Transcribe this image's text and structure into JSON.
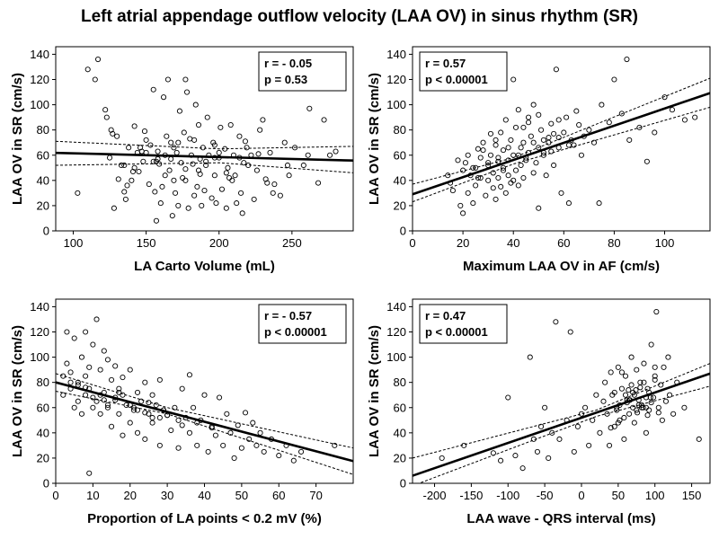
{
  "figure_title": "Left atrial appendage outflow velocity (LAA OV) in sinus rhythm (SR)",
  "chart_data": [
    {
      "type": "scatter",
      "ylabel": "LAA OV in SR (cm/s)",
      "xlabel": "LA Carto Volume (mL)",
      "xlim": [
        88,
        292
      ],
      "ylim": [
        0,
        146
      ],
      "xticks": [
        100,
        150,
        200,
        250
      ],
      "yticks": [
        0,
        20,
        40,
        60,
        80,
        100,
        120,
        140
      ],
      "grid": false,
      "stats": [
        "r = - 0.05",
        "p = 0.53"
      ],
      "stats_position": "top-right",
      "regression": {
        "intercept": 64.5,
        "slope": -0.03
      },
      "ci_band": {
        "lower": [
          [
            88,
            52
          ],
          [
            200,
            54
          ],
          [
            292,
            46
          ]
        ],
        "upper": [
          [
            88,
            71
          ],
          [
            200,
            65
          ],
          [
            292,
            67
          ]
        ]
      },
      "x": [
        103,
        110,
        115,
        117,
        122,
        123,
        125,
        126,
        128,
        131,
        133,
        135,
        136,
        138,
        140,
        142,
        142,
        145,
        146,
        148,
        150,
        150,
        152,
        153,
        155,
        156,
        157,
        158,
        159,
        160,
        161,
        162,
        163,
        164,
        165,
        166,
        167,
        168,
        169,
        170,
        171,
        172,
        173,
        174,
        175,
        176,
        177,
        178,
        179,
        180,
        181,
        182,
        183,
        184,
        185,
        186,
        187,
        188,
        189,
        190,
        191,
        192,
        193,
        195,
        196,
        197,
        198,
        200,
        201,
        202,
        204,
        205,
        206,
        208,
        209,
        210,
        212,
        214,
        215,
        216,
        218,
        220,
        222,
        224,
        226,
        230,
        232,
        235,
        238,
        242,
        245,
        248,
        252,
        258,
        262,
        268,
        272,
        276,
        280,
        130,
        144,
        158,
        172,
        186,
        200,
        214,
        228,
        141,
        155,
        169,
        183,
        197,
        211,
        135,
        149,
        163,
        177,
        191,
        205,
        219,
        233,
        247,
        261,
        127,
        137,
        147,
        157,
        167,
        177,
        187,
        197,
        207,
        217,
        227,
        237
      ],
      "y": [
        30,
        128,
        120,
        136,
        96,
        90,
        58,
        80,
        18,
        41,
        52,
        31,
        25,
        66,
        40,
        50,
        83,
        47,
        66,
        55,
        72,
        62,
        37,
        68,
        112,
        31,
        8,
        63,
        53,
        22,
        35,
        106,
        44,
        75,
        120,
        48,
        57,
        12,
        40,
        30,
        62,
        20,
        95,
        54,
        42,
        78,
        120,
        110,
        18,
        73,
        60,
        53,
        28,
        100,
        35,
        84,
        45,
        20,
        66,
        32,
        52,
        90,
        60,
        26,
        70,
        44,
        22,
        58,
        82,
        33,
        65,
        18,
        50,
        84,
        40,
        60,
        22,
        75,
        30,
        14,
        71,
        52,
        60,
        25,
        48,
        88,
        41,
        62,
        37,
        28,
        70,
        44,
        66,
        52,
        97,
        38,
        88,
        60,
        63,
        75,
        62,
        57,
        70,
        48,
        62,
        58,
        80,
        47,
        55,
        66,
        72,
        58,
        44,
        52,
        79,
        60,
        40,
        55,
        46,
        66,
        38,
        52,
        60,
        77,
        36,
        63,
        55,
        70,
        49,
        57,
        68,
        42,
        54,
        61,
        30
      ]
    },
    {
      "type": "scatter",
      "ylabel": "LAA OV in SR (cm/s)",
      "xlabel": "Maximum LAA OV in AF (cm/s)",
      "xlim": [
        0,
        118
      ],
      "ylim": [
        0,
        146
      ],
      "xticks": [
        0,
        20,
        40,
        60,
        80,
        100
      ],
      "yticks": [
        0,
        20,
        40,
        60,
        80,
        100,
        120,
        140
      ],
      "grid": false,
      "stats": [
        "r = 0.57",
        "p < 0.00001"
      ],
      "stats_position": "top-left",
      "regression": {
        "intercept": 29,
        "slope": 0.68
      },
      "ci_band": {
        "lower": [
          [
            0,
            23
          ],
          [
            40,
            53
          ],
          [
            118,
            98
          ]
        ],
        "upper": [
          [
            0,
            37
          ],
          [
            40,
            58
          ],
          [
            118,
            121
          ]
        ]
      },
      "x": [
        14,
        15,
        16,
        18,
        19,
        20,
        20,
        21,
        22,
        22,
        23,
        24,
        25,
        25,
        26,
        27,
        27,
        28,
        29,
        30,
        30,
        31,
        31,
        32,
        32,
        33,
        33,
        34,
        34,
        35,
        35,
        36,
        36,
        37,
        37,
        38,
        38,
        39,
        39,
        40,
        40,
        41,
        41,
        42,
        42,
        43,
        43,
        44,
        44,
        45,
        46,
        46,
        47,
        48,
        48,
        49,
        50,
        50,
        51,
        52,
        52,
        53,
        54,
        55,
        55,
        56,
        57,
        58,
        58,
        59,
        60,
        61,
        62,
        63,
        64,
        65,
        66,
        67,
        68,
        70,
        72,
        74,
        75,
        78,
        80,
        83,
        85,
        86,
        90,
        93,
        96,
        100,
        103,
        108,
        112,
        28,
        34,
        38,
        44,
        48,
        52,
        56,
        62,
        30,
        36,
        42,
        46,
        54,
        26,
        40,
        58,
        33,
        45,
        50,
        24
      ],
      "y": [
        44,
        38,
        32,
        56,
        20,
        48,
        14,
        54,
        30,
        60,
        44,
        22,
        50,
        36,
        65,
        42,
        58,
        70,
        28,
        52,
        40,
        77,
        60,
        34,
        46,
        68,
        25,
        55,
        42,
        78,
        35,
        64,
        50,
        30,
        88,
        56,
        44,
        72,
        38,
        120,
        60,
        48,
        82,
        36,
        96,
        52,
        66,
        70,
        42,
        58,
        62,
        90,
        75,
        46,
        100,
        54,
        66,
        18,
        80,
        60,
        72,
        44,
        70,
        63,
        85,
        52,
        128,
        66,
        74,
        30,
        78,
        90,
        22,
        72,
        68,
        95,
        84,
        60,
        75,
        80,
        70,
        22,
        100,
        86,
        120,
        93,
        136,
        72,
        82,
        55,
        78,
        106,
        96,
        88,
        90,
        64,
        58,
        66,
        82,
        70,
        62,
        77,
        68,
        54,
        48,
        60,
        86,
        74,
        42,
        40,
        88,
        72,
        56,
        92,
        50
      ]
    },
    {
      "type": "scatter",
      "ylabel": "LAA OV in SR (cm/s)",
      "xlabel": "Proportion of LA points < 0.2 mV (%)",
      "xlim": [
        0,
        80
      ],
      "ylim": [
        0,
        146
      ],
      "xticks": [
        0,
        10,
        20,
        30,
        40,
        50,
        60,
        70
      ],
      "yticks": [
        0,
        20,
        40,
        60,
        80,
        100,
        120,
        140
      ],
      "grid": false,
      "stats": [
        "r = - 0.57",
        "p < 0.00001"
      ],
      "stats_position": "top-right",
      "regression": {
        "intercept": 80,
        "slope": -0.78
      },
      "ci_band": {
        "lower": [
          [
            0,
            73
          ],
          [
            30,
            55
          ],
          [
            80,
            7
          ]
        ],
        "upper": [
          [
            0,
            87
          ],
          [
            30,
            60
          ],
          [
            80,
            28
          ]
        ]
      },
      "x": [
        2,
        2,
        3,
        3,
        4,
        4,
        5,
        5,
        6,
        6,
        7,
        7,
        8,
        8,
        8,
        9,
        9,
        10,
        10,
        11,
        11,
        12,
        12,
        13,
        13,
        14,
        14,
        15,
        15,
        16,
        16,
        17,
        17,
        18,
        18,
        19,
        20,
        20,
        21,
        22,
        22,
        23,
        24,
        24,
        25,
        26,
        26,
        27,
        28,
        28,
        29,
        30,
        31,
        32,
        33,
        34,
        35,
        36,
        36,
        37,
        38,
        39,
        40,
        41,
        42,
        43,
        44,
        45,
        46,
        47,
        48,
        49,
        50,
        51,
        52,
        53,
        54,
        55,
        56,
        58,
        60,
        62,
        64,
        66,
        75,
        6,
        10,
        14,
        18,
        22,
        26,
        30,
        34,
        38,
        42,
        9,
        13,
        17,
        21,
        25,
        29,
        33,
        4,
        8,
        12,
        16,
        20,
        24,
        28
      ],
      "y": [
        85,
        70,
        120,
        95,
        75,
        88,
        60,
        115,
        65,
        80,
        55,
        100,
        120,
        70,
        85,
        8,
        75,
        60,
        110,
        65,
        130,
        55,
        90,
        105,
        72,
        60,
        98,
        82,
        45,
        68,
        93,
        55,
        75,
        38,
        84,
        62,
        48,
        90,
        58,
        72,
        40,
        65,
        80,
        35,
        55,
        70,
        48,
        62,
        82,
        30,
        58,
        54,
        42,
        60,
        28,
        75,
        52,
        86,
        40,
        60,
        30,
        50,
        70,
        25,
        45,
        38,
        68,
        30,
        55,
        40,
        20,
        46,
        28,
        56,
        35,
        48,
        30,
        40,
        25,
        35,
        22,
        30,
        18,
        25,
        30,
        78,
        68,
        62,
        70,
        58,
        52,
        54,
        46,
        48,
        44,
        92,
        66,
        72,
        60,
        64,
        58,
        50,
        80,
        76,
        70,
        66,
        62,
        56,
        52
      ]
    },
    {
      "type": "scatter",
      "ylabel": "LAA OV in SR (cm/s)",
      "xlabel": "LAA wave - QRS interval (ms)",
      "xlim": [
        -230,
        175
      ],
      "ylim": [
        0,
        146
      ],
      "xticks": [
        -200,
        -150,
        -100,
        -50,
        0,
        50,
        100,
        150
      ],
      "yticks": [
        0,
        20,
        40,
        60,
        80,
        100,
        120,
        140
      ],
      "grid": false,
      "stats": [
        "r = 0.47",
        "p < 0.00001"
      ],
      "stats_position": "top-left",
      "regression": {
        "intercept": 52,
        "slope": 0.2
      },
      "ci_band": {
        "lower": [
          [
            -230,
            -2
          ],
          [
            20,
            53
          ],
          [
            175,
            77
          ]
        ],
        "upper": [
          [
            -230,
            20
          ],
          [
            20,
            58
          ],
          [
            175,
            95
          ]
        ]
      },
      "x": [
        -190,
        -160,
        -120,
        -110,
        -100,
        -90,
        -80,
        -70,
        -65,
        -60,
        -55,
        -50,
        -45,
        -40,
        -35,
        -30,
        -20,
        -15,
        -10,
        -5,
        0,
        5,
        10,
        15,
        20,
        25,
        30,
        32,
        35,
        38,
        40,
        42,
        45,
        48,
        50,
        52,
        55,
        58,
        60,
        62,
        65,
        68,
        70,
        72,
        75,
        78,
        80,
        82,
        85,
        88,
        90,
        92,
        95,
        98,
        100,
        102,
        105,
        108,
        110,
        112,
        115,
        118,
        120,
        125,
        130,
        140,
        160,
        45,
        55,
        65,
        75,
        85,
        95,
        50,
        60,
        70,
        80,
        90,
        100,
        40,
        52,
        64,
        76,
        88,
        100,
        58,
        68,
        78,
        88,
        48,
        62,
        72,
        82,
        92,
        105,
        66,
        74,
        84,
        94
      ],
      "y": [
        20,
        30,
        24,
        18,
        68,
        22,
        12,
        100,
        35,
        25,
        45,
        60,
        20,
        40,
        128,
        35,
        50,
        120,
        25,
        45,
        55,
        60,
        30,
        50,
        70,
        40,
        65,
        80,
        55,
        30,
        88,
        70,
        45,
        60,
        92,
        50,
        75,
        35,
        85,
        66,
        55,
        100,
        72,
        48,
        90,
        62,
        80,
        60,
        95,
        40,
        75,
        58,
        110,
        68,
        85,
        136,
        60,
        78,
        50,
        92,
        65,
        100,
        70,
        55,
        80,
        60,
        35,
        72,
        88,
        66,
        58,
        80,
        64,
        48,
        70,
        60,
        76,
        54,
        82,
        44,
        62,
        74,
        56,
        68,
        92,
        52,
        78,
        66,
        60,
        58,
        64,
        70,
        62,
        72,
        56,
        66,
        74,
        60,
        68
      ]
    }
  ]
}
